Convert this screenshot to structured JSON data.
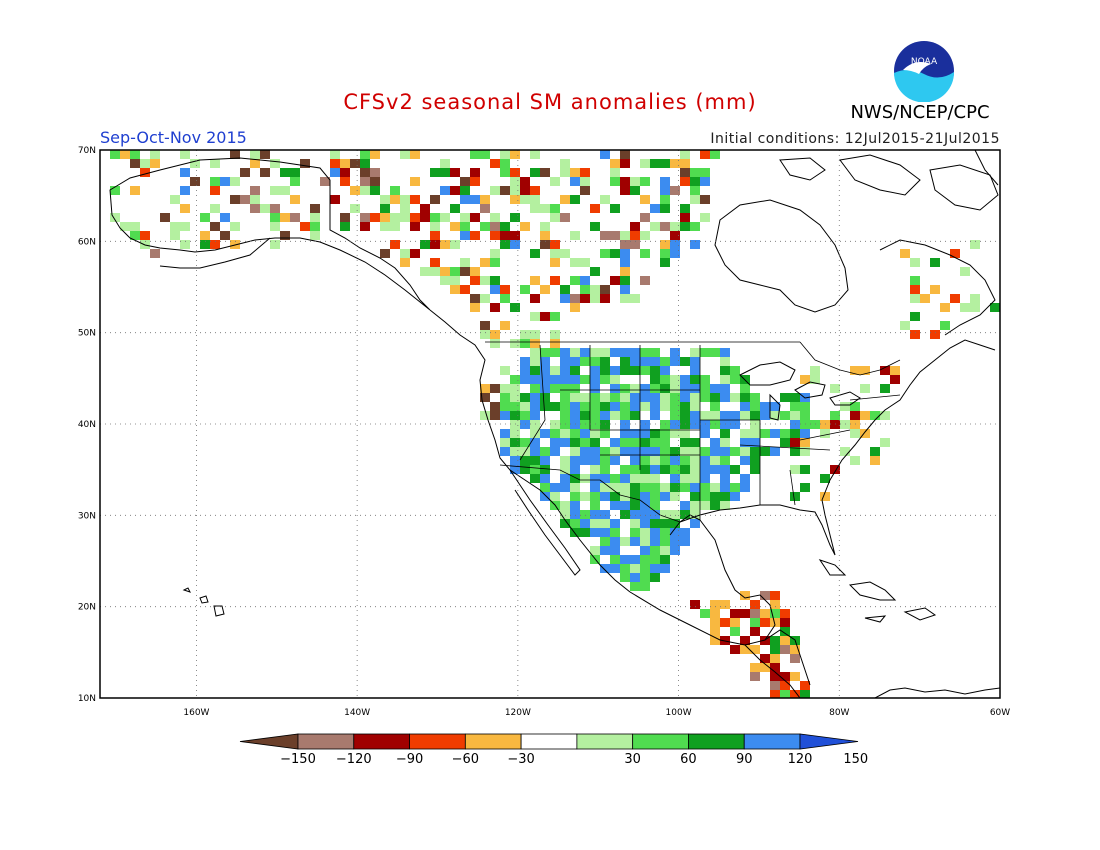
{
  "header": {
    "title": "CFSv2 seasonal SM anomalies (mm)",
    "period": "Sep-Oct-Nov 2015",
    "initial_conditions": "Initial conditions: 12Jul2015-21Jul2015",
    "agency": "NWS/NCEP/CPC",
    "logo_text": "NOAA"
  },
  "map": {
    "projection": "lat-lon",
    "lon_range": [
      -172,
      -60
    ],
    "lat_range": [
      10,
      70
    ],
    "lon_ticks": [
      "160W",
      "140W",
      "120W",
      "100W",
      "80W",
      "60W"
    ],
    "lat_ticks": [
      "10N",
      "20N",
      "30N",
      "40N",
      "50N",
      "60N",
      "70N"
    ],
    "grid": "dotted"
  },
  "legend": {
    "labels": [
      "-150",
      "-120",
      "-90",
      "-60",
      "-30",
      "30",
      "60",
      "90",
      "120",
      "150"
    ],
    "colors": [
      "#6b3f2a",
      "#a87a6e",
      "#a00000",
      "#f03c00",
      "#f8b840",
      "#ffffff",
      "#b4f0a0",
      "#50dc50",
      "#10a020",
      "#3c8cf0",
      "#2050d8"
    ]
  }
}
